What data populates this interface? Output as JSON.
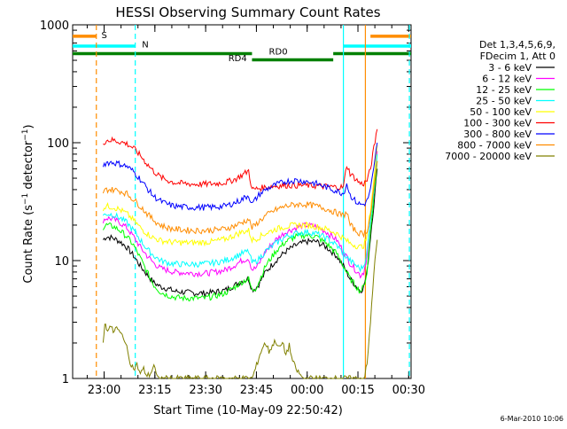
{
  "chart_data": {
    "type": "line",
    "title": "HESSI Observing Summary Count Rates",
    "xlabel": "Start Time (10-May-09 22:50:42)",
    "ylabel": "Count Rate (s",
    "ylabel_sup": "−1",
    "ylabel_tail": " detector",
    "ylabel_sup2": "−1",
    "ylabel_end": ")",
    "x_unit": "minutes since 22:50:42",
    "xlim": [
      0,
      100
    ],
    "ylim": [
      1,
      1000
    ],
    "y_scale": "log",
    "x_ticks": [
      {
        "label": "23:00",
        "value": 9.3
      },
      {
        "label": "23:15",
        "value": 24.3
      },
      {
        "label": "23:30",
        "value": 39.3
      },
      {
        "label": "23:45",
        "value": 54.3
      },
      {
        "label": "00:00",
        "value": 69.3
      },
      {
        "label": "00:15",
        "value": 84.3
      },
      {
        "label": "00:30",
        "value": 99.3
      }
    ],
    "y_ticks": [
      {
        "label": "1",
        "value": 1
      },
      {
        "label": "10",
        "value": 10
      },
      {
        "label": "100",
        "value": 100
      },
      {
        "label": "1000",
        "value": 1000
      }
    ],
    "legend_position": "right",
    "legend_header": [
      "Det 1,3,4,5,6,9,",
      "FDecim 1, Att 0"
    ],
    "series": [
      {
        "name": "3 - 6 keV",
        "color": "#000000",
        "x": [
          9,
          10,
          12,
          14,
          16,
          18,
          20,
          22,
          24,
          26,
          28,
          30,
          33,
          36,
          39,
          42,
          45,
          48,
          50,
          52,
          53,
          54,
          55,
          57,
          60,
          63,
          66,
          69,
          72,
          75,
          78,
          80,
          82,
          85,
          86,
          87,
          88,
          89,
          90
        ],
        "y": [
          15,
          16,
          15.5,
          14.5,
          13,
          11,
          9,
          7.6,
          6.5,
          6,
          5.8,
          5.5,
          5.4,
          5.3,
          5.3,
          5.4,
          5.6,
          6.2,
          6.7,
          7,
          5.7,
          5.8,
          6.3,
          8,
          10,
          12,
          13.5,
          14.5,
          14.5,
          13,
          11,
          9,
          7,
          5.5,
          6,
          8,
          16,
          30,
          60
        ]
      },
      {
        "name": "6 - 12 keV",
        "color": "#ff00ff",
        "x": [
          9,
          10,
          12,
          14,
          16,
          18,
          20,
          22,
          24,
          26,
          28,
          30,
          33,
          36,
          39,
          42,
          45,
          48,
          50,
          52,
          53,
          54,
          55,
          57,
          60,
          63,
          66,
          69,
          72,
          75,
          78,
          80,
          82,
          85,
          86,
          87,
          88,
          89,
          90
        ],
        "y": [
          22,
          23,
          22.5,
          21,
          19,
          16,
          13,
          11,
          9.5,
          8.6,
          8.3,
          8,
          7.9,
          7.8,
          7.8,
          8,
          8.3,
          9.2,
          10,
          10.5,
          8.4,
          8.6,
          9.3,
          12,
          15,
          17.5,
          19,
          20,
          19.5,
          17.5,
          15,
          12,
          9.5,
          7.5,
          8,
          11,
          22,
          42,
          85
        ]
      },
      {
        "name": "12 - 25 keV",
        "color": "#00ff00",
        "x": [
          9,
          10,
          12,
          14,
          16,
          18,
          20,
          22,
          24,
          26,
          28,
          30,
          33,
          36,
          39,
          42,
          45,
          48,
          50,
          52,
          53,
          54,
          55,
          57,
          60,
          63,
          66,
          69,
          72,
          75,
          78,
          80,
          82,
          85,
          86,
          87,
          88,
          89,
          90
        ],
        "y": [
          19,
          20,
          19.5,
          18,
          16,
          13.5,
          10.5,
          8,
          6.2,
          5.4,
          5.1,
          4.9,
          4.8,
          4.8,
          4.8,
          5,
          5.3,
          6,
          6.6,
          7,
          5.6,
          5.8,
          6.6,
          9,
          12,
          14.5,
          16,
          16.5,
          16,
          14,
          11.5,
          9,
          7,
          5.5,
          6,
          8,
          18,
          35,
          70
        ]
      },
      {
        "name": "25 - 50 keV",
        "color": "#00ffff",
        "x": [
          9,
          10,
          12,
          14,
          16,
          18,
          20,
          22,
          24,
          26,
          28,
          30,
          33,
          36,
          39,
          42,
          45,
          48,
          50,
          52,
          53,
          54,
          55,
          57,
          60,
          63,
          66,
          69,
          72,
          75,
          78,
          80,
          82,
          85,
          86,
          87,
          88,
          89,
          90
        ],
        "y": [
          24,
          25,
          24.5,
          23,
          21,
          18,
          15,
          12.5,
          11,
          10,
          9.6,
          9.4,
          9.3,
          9.3,
          9.4,
          9.6,
          10,
          10.8,
          11.5,
          12,
          9.6,
          9.8,
          10.3,
          12,
          14,
          16,
          17,
          17.5,
          17,
          15.5,
          13.5,
          11.5,
          10,
          8.5,
          9,
          12,
          22,
          40,
          80
        ]
      },
      {
        "name": "50 - 100 keV",
        "color": "#ffff00",
        "x": [
          9,
          10,
          12,
          14,
          16,
          18,
          20,
          22,
          24,
          26,
          28,
          30,
          33,
          36,
          39,
          42,
          45,
          48,
          50,
          52,
          53,
          54,
          55,
          57,
          60,
          63,
          66,
          69,
          72,
          75,
          78,
          80,
          82,
          85,
          86,
          87,
          88,
          89,
          90
        ],
        "y": [
          28,
          29,
          28.5,
          27,
          25,
          22,
          19,
          17,
          15.5,
          14.8,
          14.5,
          14.3,
          14.2,
          14.2,
          14.3,
          14.6,
          15.2,
          16.5,
          17.5,
          18,
          15,
          15.2,
          15.8,
          17,
          18.5,
          19.5,
          20,
          20,
          19.5,
          18.5,
          17,
          15.5,
          14,
          13,
          13.5,
          16,
          27,
          48,
          95
        ]
      },
      {
        "name": "100 - 300 keV",
        "color": "#ff0000",
        "x": [
          9,
          10,
          12,
          14,
          16,
          18,
          20,
          22,
          24,
          26,
          28,
          30,
          33,
          36,
          39,
          42,
          45,
          48,
          50,
          52,
          53,
          54,
          55,
          57,
          60,
          63,
          66,
          69,
          72,
          75,
          78,
          80,
          81,
          82,
          84,
          85,
          86,
          87,
          88,
          89,
          90
        ],
        "y": [
          100,
          105,
          105,
          102,
          98,
          90,
          78,
          66,
          57,
          51,
          48,
          46,
          45,
          44.5,
          44.5,
          45,
          46,
          49,
          53,
          58,
          40,
          40.5,
          41,
          42,
          43,
          43.5,
          43.5,
          43.5,
          43,
          42.5,
          42,
          42,
          65,
          55,
          48,
          45,
          45,
          48,
          60,
          90,
          130
        ]
      },
      {
        "name": "300 - 800 keV",
        "color": "#0000ff",
        "x": [
          9,
          10,
          12,
          14,
          16,
          18,
          20,
          22,
          24,
          26,
          28,
          30,
          33,
          36,
          39,
          42,
          45,
          48,
          50,
          52,
          53,
          54,
          55,
          57,
          60,
          63,
          66,
          69,
          72,
          75,
          78,
          80,
          81,
          82,
          84,
          85,
          86,
          87,
          88,
          89,
          90
        ],
        "y": [
          65,
          68,
          68,
          66,
          63,
          57,
          49,
          41,
          35,
          32,
          30,
          29,
          28.5,
          28.3,
          28.3,
          28.5,
          29,
          31,
          33,
          36,
          30,
          33,
          36,
          40,
          44,
          47,
          48,
          47,
          45,
          42,
          39,
          37,
          45,
          36,
          31,
          30,
          30,
          32,
          40,
          60,
          100
        ]
      },
      {
        "name": "800 - 7000 keV",
        "color": "#ff8c00",
        "x": [
          9,
          10,
          12,
          14,
          16,
          18,
          20,
          22,
          24,
          26,
          28,
          30,
          33,
          36,
          39,
          42,
          45,
          48,
          50,
          52,
          53,
          54,
          55,
          57,
          60,
          63,
          66,
          69,
          72,
          75,
          78,
          80,
          81,
          82,
          84,
          85,
          86,
          87,
          88,
          89,
          90
        ],
        "y": [
          38,
          40,
          40,
          39,
          37,
          33,
          29,
          25,
          22,
          20,
          19,
          18.5,
          18.2,
          18,
          18,
          18.2,
          18.6,
          19.8,
          21,
          22.5,
          19,
          20,
          21.5,
          24,
          27,
          29,
          30,
          30,
          29,
          27.5,
          25.5,
          24,
          26,
          20,
          17.5,
          17,
          17,
          18,
          24,
          40,
          70
        ]
      },
      {
        "name": "7000 - 20000 keV",
        "color": "#808000",
        "x": [
          9,
          9.5,
          10,
          11,
          12,
          13,
          14,
          15,
          16,
          17,
          18,
          19,
          20,
          21,
          22,
          23,
          24,
          25,
          53,
          54,
          55,
          56,
          57,
          58,
          59,
          60,
          61,
          62,
          63,
          64,
          65,
          66,
          67,
          68,
          86,
          87,
          88,
          89,
          90
        ],
        "y": [
          2,
          3,
          2.6,
          2.8,
          2.5,
          2.7,
          2.4,
          2.3,
          1.8,
          1.4,
          1.2,
          1.3,
          1.1,
          1.2,
          1.05,
          1.1,
          1.3,
          1,
          1,
          1.2,
          1.5,
          1.8,
          2,
          1.7,
          1.9,
          2.1,
          1.8,
          2,
          1.6,
          1.9,
          1.4,
          1.2,
          1.1,
          1,
          1,
          1.3,
          3,
          8,
          15
        ]
      }
    ],
    "annotations": [
      {
        "label": "S",
        "color": "#ff8c00"
      },
      {
        "label": "N",
        "color": "#00ffff"
      },
      {
        "label": "RD0",
        "color": "#008000"
      },
      {
        "label": "RD4",
        "color": "#008000"
      }
    ],
    "flag_bars": [
      {
        "color": "#ff8c00",
        "y": 800,
        "x": [
          [
            0,
            7
          ]
        ]
      },
      {
        "color": "#ff8c00",
        "y": 800,
        "x": [
          [
            88,
            100
          ]
        ]
      },
      {
        "color": "#00ffff",
        "y": 660,
        "x": [
          [
            0,
            18.5
          ]
        ]
      },
      {
        "color": "#00ffff",
        "y": 660,
        "x": [
          [
            80,
            100
          ]
        ]
      },
      {
        "color": "#008000",
        "y": 570,
        "x": [
          [
            0,
            53
          ]
        ]
      },
      {
        "color": "#008000",
        "y": 570,
        "x": [
          [
            77,
            100
          ]
        ]
      },
      {
        "color": "#008000",
        "y": 505,
        "x": [
          [
            53,
            77
          ]
        ]
      }
    ],
    "vlines": [
      {
        "color": "#ff8c00",
        "x": 7,
        "dash": true
      },
      {
        "color": "#00ffff",
        "x": 18.5,
        "dash": true
      },
      {
        "color": "#00ffff",
        "x": 80,
        "dash": false
      },
      {
        "color": "#ff8c00",
        "x": 86.5,
        "dash": false
      },
      {
        "color": "#00ffff",
        "x": 99.5,
        "dash": true
      }
    ],
    "footer_date": "6-Mar-2010 10:06"
  }
}
